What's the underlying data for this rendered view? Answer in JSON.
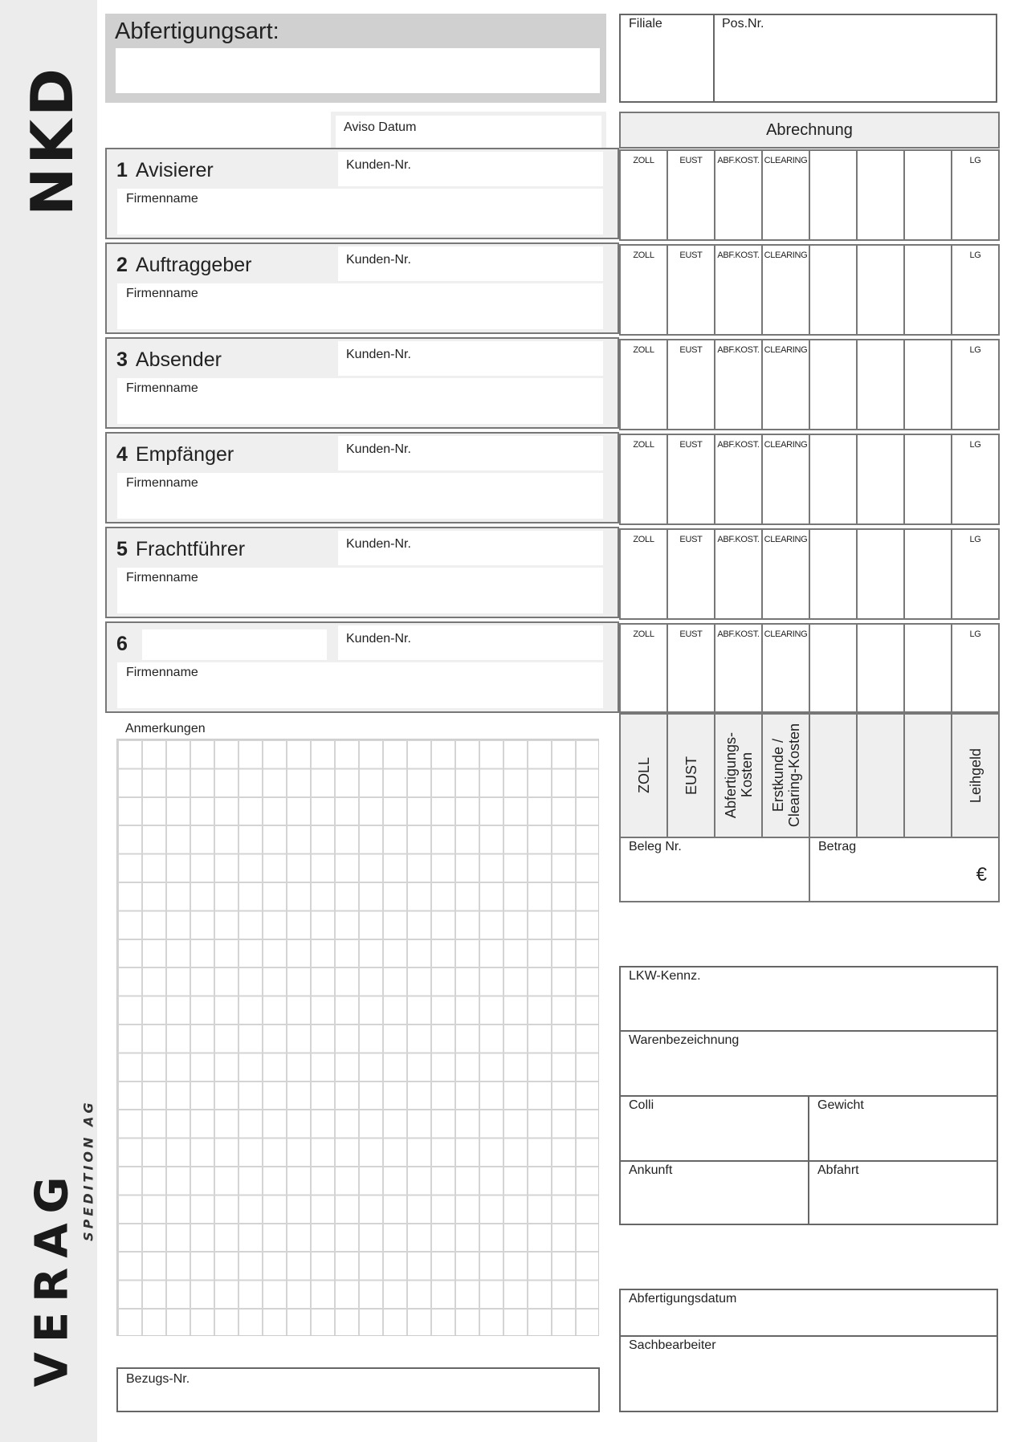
{
  "logos": {
    "nkd": "NKD",
    "verag": "VERAG",
    "verag_sub": "SPEDITION AG"
  },
  "header": {
    "abfertigungsart": "Abfertigungsart:",
    "filiale": "Filiale",
    "pos_nr": "Pos.Nr.",
    "aviso_datum": "Aviso Datum",
    "abrechnung": "Abrechnung"
  },
  "sections": [
    {
      "num": "1",
      "title": "Avisierer",
      "kunden": "Kunden-Nr.",
      "firma": "Firmenname"
    },
    {
      "num": "2",
      "title": "Auftraggeber",
      "kunden": "Kunden-Nr.",
      "firma": "Firmenname"
    },
    {
      "num": "3",
      "title": "Absender",
      "kunden": "Kunden-Nr.",
      "firma": "Firmenname"
    },
    {
      "num": "4",
      "title": "Empfänger",
      "kunden": "Kunden-Nr.",
      "firma": "Firmenname"
    },
    {
      "num": "5",
      "title": "Frachtführer",
      "kunden": "Kunden-Nr.",
      "firma": "Firmenname"
    },
    {
      "num": "6",
      "title": "",
      "kunden": "Kunden-Nr.",
      "firma": "Firmenname"
    }
  ],
  "cost_columns_short": [
    "ZOLL",
    "EUST",
    "ABF.KOST.",
    "CLEARING",
    "",
    "",
    "",
    "LG"
  ],
  "cost_columns_long": [
    "ZOLL",
    "EUST",
    "Abfertigungs-\nKosten",
    "Erstkunde /\nClearing-Kosten",
    "",
    "",
    "",
    "Leihgeld"
  ],
  "beleg": {
    "beleg_nr": "Beleg Nr.",
    "betrag": "Betrag",
    "currency": "€"
  },
  "anmerkungen": "Anmerkungen",
  "bezugs_nr": "Bezugs-Nr.",
  "transport": {
    "lkw": "LKW-Kennz.",
    "ware": "Warenbezeichnung",
    "colli": "Colli",
    "gewicht": "Gewicht",
    "ankunft": "Ankunft",
    "abfahrt": "Abfahrt"
  },
  "footer": {
    "abfertigungsdatum": "Abfertigungsdatum",
    "sachbearbeiter": "Sachbearbeiter"
  }
}
